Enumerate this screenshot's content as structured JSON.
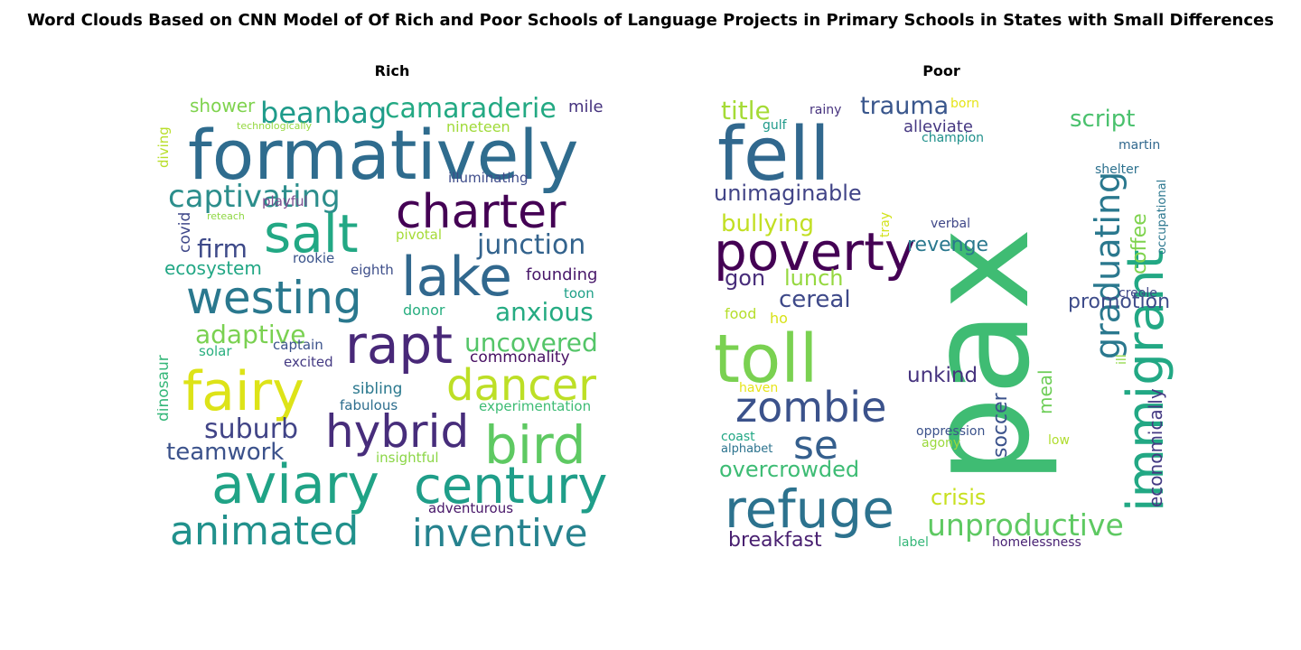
{
  "figure": {
    "title": "Word Clouds Based on CNN Model of Of Rich and Poor Schools of Language Projects in Primary Schools in States with Small Differences"
  },
  "clouds": [
    {
      "title": "Rich",
      "words": [
        {
          "text": "formatively",
          "color": "#2f6c8e"
        },
        {
          "text": "charter",
          "color": "#440154"
        },
        {
          "text": "salt",
          "color": "#22a884"
        },
        {
          "text": "lake",
          "color": "#31688e"
        },
        {
          "text": "westing",
          "color": "#2a788e"
        },
        {
          "text": "rapt",
          "color": "#482878"
        },
        {
          "text": "fairy",
          "color": "#dde318"
        },
        {
          "text": "dancer",
          "color": "#bddf26"
        },
        {
          "text": "bird",
          "color": "#5ec962"
        },
        {
          "text": "hybrid",
          "color": "#472d7b"
        },
        {
          "text": "aviary",
          "color": "#20a386"
        },
        {
          "text": "century",
          "color": "#1f9e89"
        },
        {
          "text": "animated",
          "color": "#21918c"
        },
        {
          "text": "inventive",
          "color": "#26828e"
        },
        {
          "text": "captivating",
          "color": "#2c8e8c"
        },
        {
          "text": "camaraderie",
          "color": "#23a983"
        },
        {
          "text": "beanbag",
          "color": "#1e9b8a"
        },
        {
          "text": "junction",
          "color": "#33638d"
        },
        {
          "text": "firm",
          "color": "#3e4a89"
        },
        {
          "text": "adaptive",
          "color": "#7ad151"
        },
        {
          "text": "uncovered",
          "color": "#54c568"
        },
        {
          "text": "anxious",
          "color": "#25ab82"
        },
        {
          "text": "suburb",
          "color": "#414487"
        },
        {
          "text": "teamwork",
          "color": "#3b528b"
        },
        {
          "text": "ecosystem",
          "color": "#22a785"
        },
        {
          "text": "shower",
          "color": "#7fd34e"
        },
        {
          "text": "mile",
          "color": "#46337e"
        },
        {
          "text": "nineteen",
          "color": "#a0da39"
        },
        {
          "text": "illuminating",
          "color": "#3e4c8a"
        },
        {
          "text": "playful",
          "color": "#7e4e90"
        },
        {
          "text": "covid",
          "color": "#3f4889"
        },
        {
          "text": "diving",
          "color": "#b8de29"
        },
        {
          "text": "technologically",
          "color": "#95d840"
        },
        {
          "text": "reteach",
          "color": "#8fd744"
        },
        {
          "text": "pivotal",
          "color": "#a5db36"
        },
        {
          "text": "founding",
          "color": "#48186a"
        },
        {
          "text": "rookie",
          "color": "#3a538b"
        },
        {
          "text": "eighth",
          "color": "#3d4e8a"
        },
        {
          "text": "toon",
          "color": "#1fa088"
        },
        {
          "text": "donor",
          "color": "#28ae80"
        },
        {
          "text": "commonality",
          "color": "#471063"
        },
        {
          "text": "dinosaur",
          "color": "#35b779"
        },
        {
          "text": "solar",
          "color": "#29af7f"
        },
        {
          "text": "captain",
          "color": "#3b528b"
        },
        {
          "text": "excited",
          "color": "#443a83"
        },
        {
          "text": "sibling",
          "color": "#2a788e"
        },
        {
          "text": "fabulous",
          "color": "#2e6e8e"
        },
        {
          "text": "experimentation",
          "color": "#3dbc74"
        },
        {
          "text": "insightful",
          "color": "#8bd646"
        },
        {
          "text": "adventurous",
          "color": "#481769"
        }
      ]
    },
    {
      "title": "Poor",
      "words": [
        {
          "text": "pax",
          "color": "#3fbc73"
        },
        {
          "text": "fell",
          "color": "#31688e"
        },
        {
          "text": "immigrant",
          "color": "#22a884"
        },
        {
          "text": "toll",
          "color": "#7ad151"
        },
        {
          "text": "poverty",
          "color": "#440154"
        },
        {
          "text": "graduating",
          "color": "#2a788e"
        },
        {
          "text": "zombie",
          "color": "#3b528b"
        },
        {
          "text": "refuge",
          "color": "#2c728e"
        },
        {
          "text": "se",
          "color": "#355f8d"
        },
        {
          "text": "unproductive",
          "color": "#5ec962"
        },
        {
          "text": "title",
          "color": "#a5db36"
        },
        {
          "text": "trauma",
          "color": "#39568c"
        },
        {
          "text": "script",
          "color": "#4ac16d"
        },
        {
          "text": "unimaginable",
          "color": "#414487"
        },
        {
          "text": "bullying",
          "color": "#c2df23"
        },
        {
          "text": "revenge",
          "color": "#2a788e"
        },
        {
          "text": "gon",
          "color": "#472c7a"
        },
        {
          "text": "lunch",
          "color": "#95d840"
        },
        {
          "text": "cereal",
          "color": "#3e4989"
        },
        {
          "text": "promotion",
          "color": "#3e4c8a"
        },
        {
          "text": "coffee",
          "color": "#7fd34e"
        },
        {
          "text": "economically",
          "color": "#443a83"
        },
        {
          "text": "soccer",
          "color": "#3b528b"
        },
        {
          "text": "meal",
          "color": "#6ece58"
        },
        {
          "text": "unkind",
          "color": "#46337e"
        },
        {
          "text": "overcrowded",
          "color": "#3dbc74"
        },
        {
          "text": "crisis",
          "color": "#c8e020"
        },
        {
          "text": "breakfast",
          "color": "#481f70"
        },
        {
          "text": "alleviate",
          "color": "#453781"
        },
        {
          "text": "champion",
          "color": "#21918c"
        },
        {
          "text": "born",
          "color": "#e5e419"
        },
        {
          "text": "rainy",
          "color": "#46327e"
        },
        {
          "text": "gulf",
          "color": "#1f9a8a"
        },
        {
          "text": "martin",
          "color": "#31688e"
        },
        {
          "text": "shelter",
          "color": "#2c718e"
        },
        {
          "text": "tray",
          "color": "#d2e21b"
        },
        {
          "text": "verbal",
          "color": "#3f4788"
        },
        {
          "text": "occupational",
          "color": "#2a768e"
        },
        {
          "text": "creole",
          "color": "#404688"
        },
        {
          "text": "food",
          "color": "#b5de2b"
        },
        {
          "text": "ho",
          "color": "#d8e219"
        },
        {
          "text": "ill",
          "color": "#8fd744"
        },
        {
          "text": "haven",
          "color": "#e7e419"
        },
        {
          "text": "coast",
          "color": "#22a785"
        },
        {
          "text": "alphabet",
          "color": "#2c738e"
        },
        {
          "text": "oppression",
          "color": "#3b528b"
        },
        {
          "text": "agony",
          "color": "#9bd93c"
        },
        {
          "text": "low",
          "color": "#b0dd2f"
        },
        {
          "text": "label",
          "color": "#35b779"
        },
        {
          "text": "homelessness",
          "color": "#482173"
        }
      ]
    }
  ]
}
